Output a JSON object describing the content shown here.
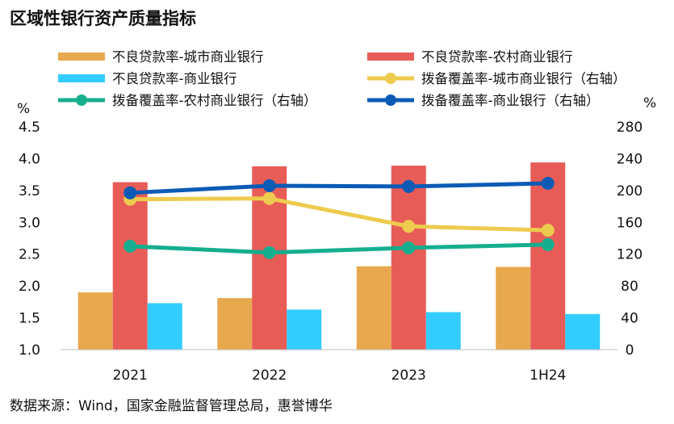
{
  "chart_data": {
    "title": "区域性银行资产质量指标",
    "source": "数据来源：Wind，国家金融监督管理总局，惠誉博华",
    "type": "bar",
    "categories": [
      "2021",
      "2022",
      "2023",
      "1H24"
    ],
    "left_axis": {
      "unit": "%",
      "min": 1.0,
      "max": 4.5,
      "ticks": [
        "1.0",
        "1.5",
        "2.0",
        "2.5",
        "3.0",
        "3.5",
        "4.0",
        "4.5"
      ]
    },
    "right_axis": {
      "unit": "%",
      "min": 0,
      "max": 280,
      "ticks": [
        "0",
        "40",
        "80",
        "120",
        "160",
        "200",
        "240",
        "280"
      ]
    },
    "bars": [
      {
        "name": "不良贷款率-城市商业银行",
        "color": "#E8A84E",
        "values": [
          1.9,
          1.81,
          2.31,
          2.3
        ]
      },
      {
        "name": "不良贷款率-农村商业银行",
        "color": "#E85C58",
        "values": [
          3.63,
          3.88,
          3.89,
          3.94
        ]
      },
      {
        "name": "不良贷款率-商业银行",
        "color": "#33CCFF",
        "values": [
          1.73,
          1.63,
          1.59,
          1.56
        ]
      }
    ],
    "lines": [
      {
        "name": "拨备覆盖率-城市商业银行（右轴）",
        "color": "#EDCB4E",
        "values": [
          189,
          190,
          155,
          150
        ]
      },
      {
        "name": "拨备覆盖率-农村商业银行（右轴）",
        "color": "#15AE8E",
        "values": [
          130,
          122,
          128,
          132
        ]
      },
      {
        "name": "拨备覆盖率-商业银行（右轴）",
        "color": "#0B5BB6",
        "values": [
          197,
          206,
          205,
          209
        ]
      }
    ]
  }
}
